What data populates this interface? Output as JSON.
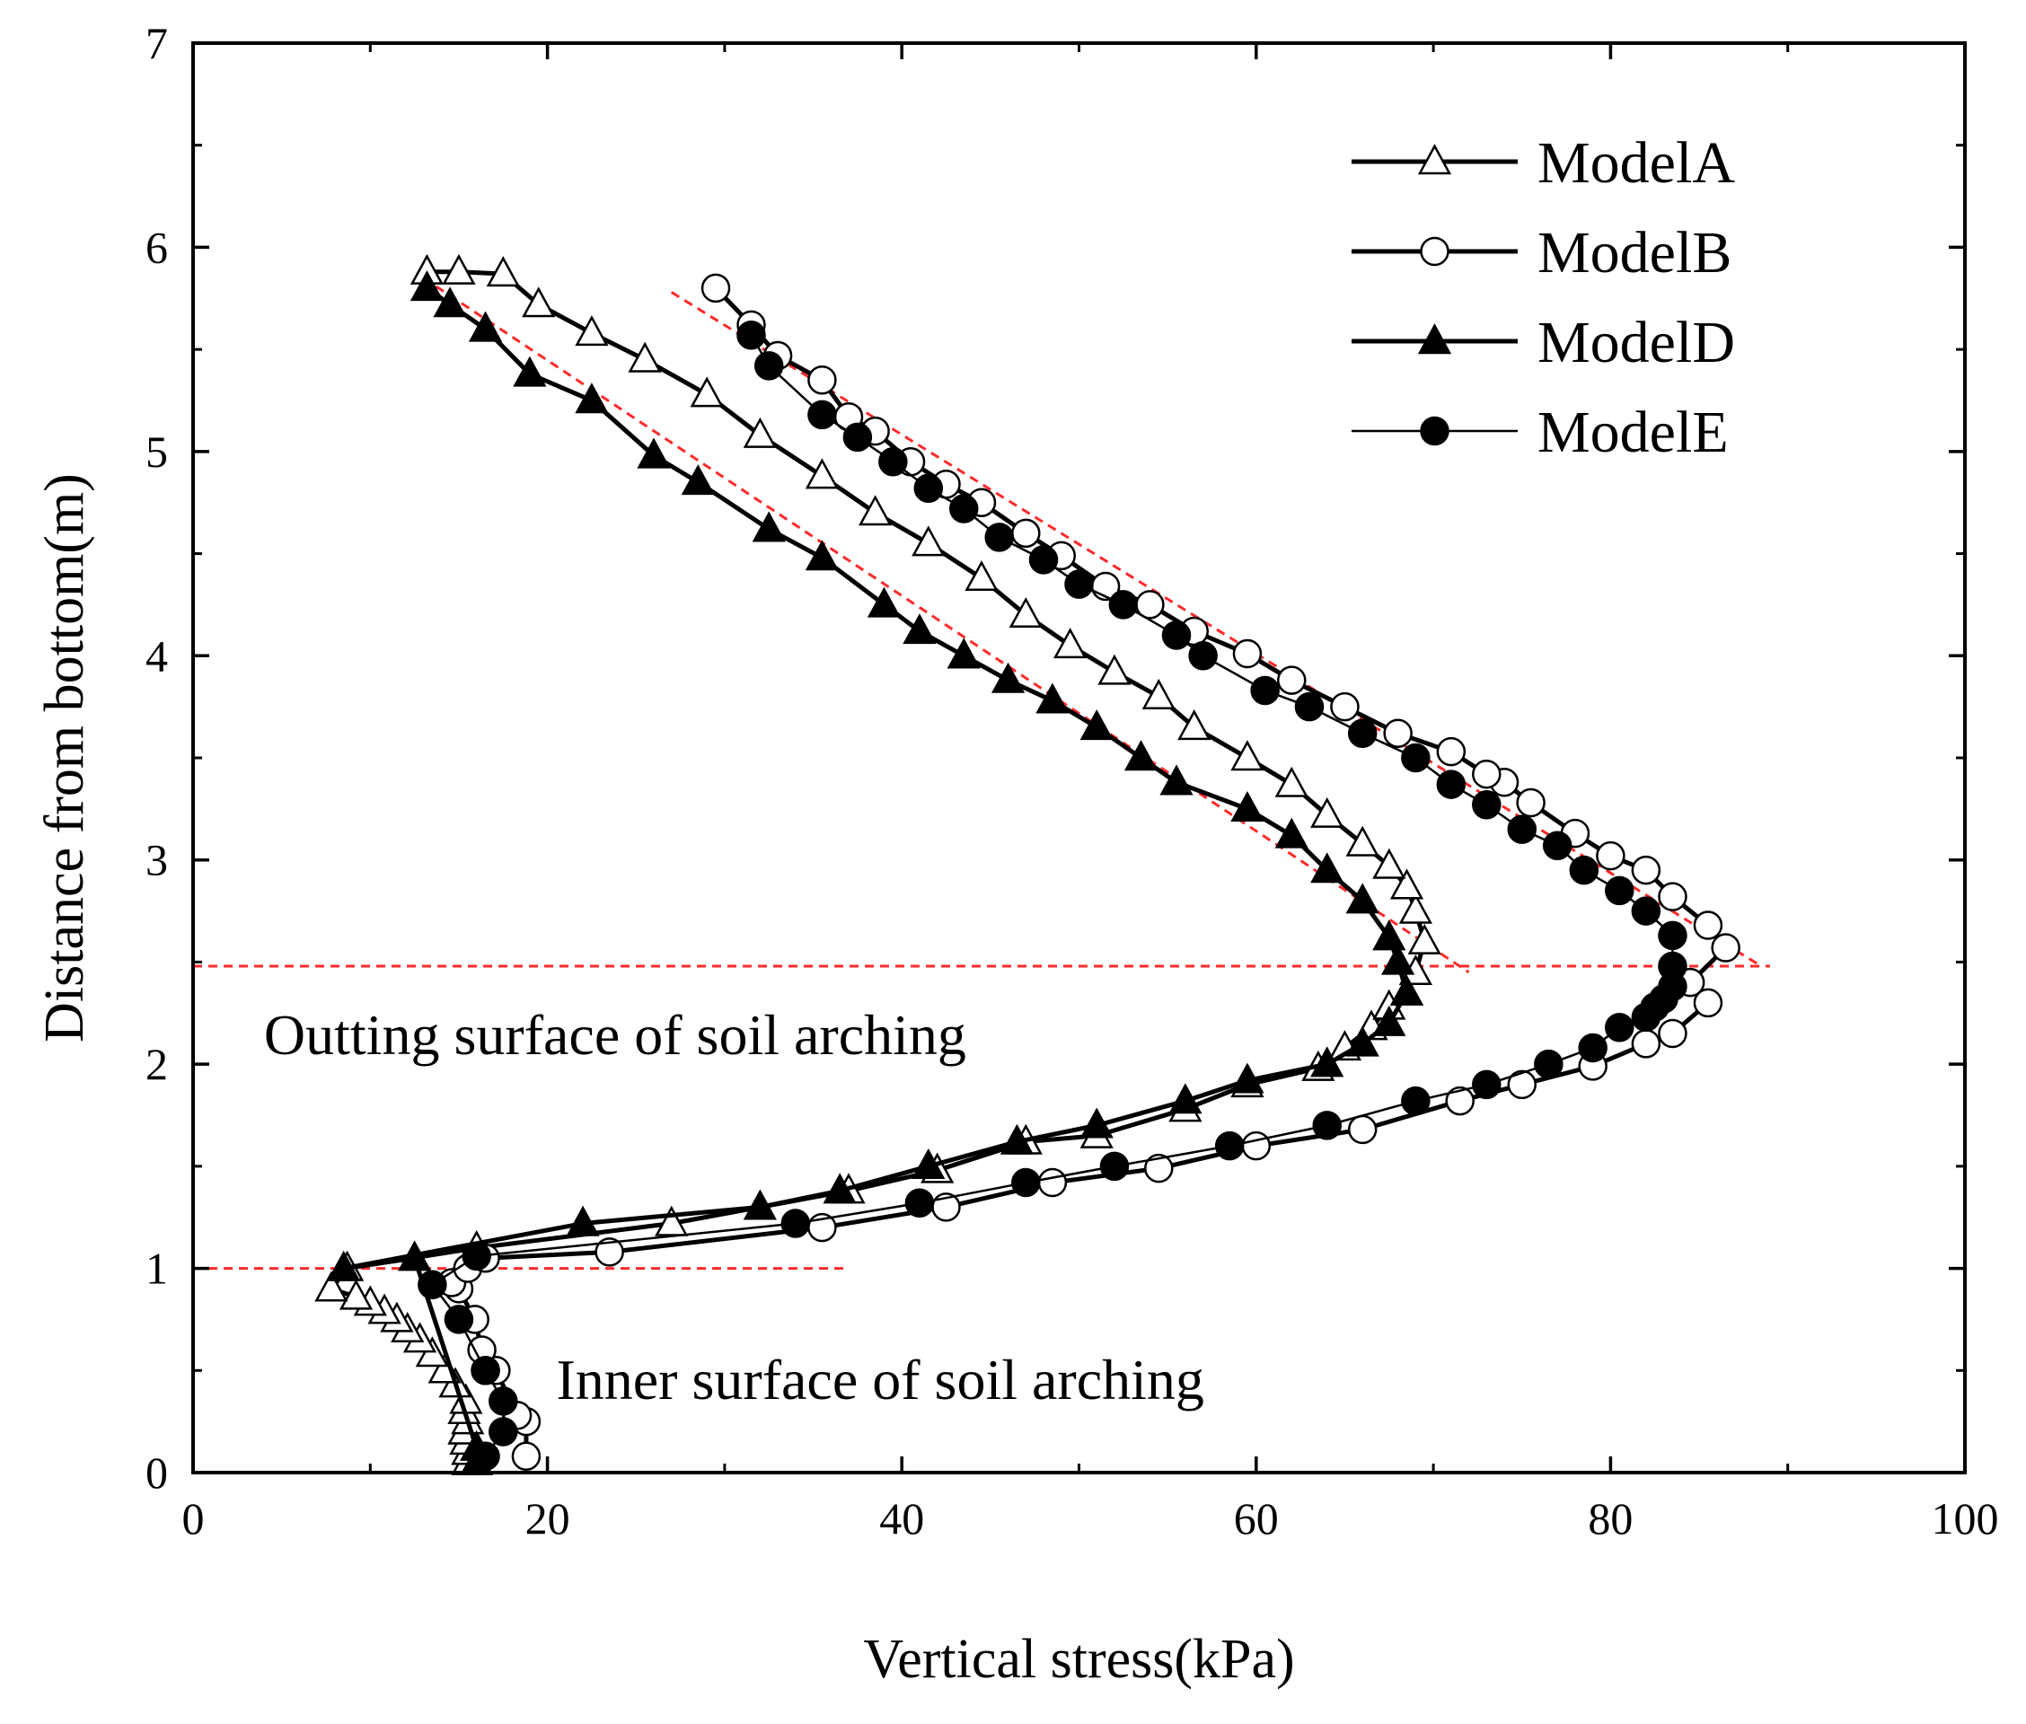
{
  "chart_data": {
    "type": "line",
    "title": "",
    "xlabel": "Vertical stress(kPa)",
    "ylabel": "Distance from bottom(m)",
    "xlim": [
      0,
      100
    ],
    "ylim": [
      0,
      7
    ],
    "xticks": [
      "0",
      "20",
      "40",
      "60",
      "80",
      "100"
    ],
    "yticks": [
      "0",
      "1",
      "2",
      "3",
      "4",
      "5",
      "6",
      "7"
    ],
    "grid": false,
    "legend_position": "top-right",
    "series": [
      {
        "name": "ModelA",
        "marker": "open-triangle",
        "line": "thick",
        "x": [
          15.5,
          15.5,
          15.4,
          15.3,
          15.5,
          15.3,
          15.4,
          14.8,
          14.2,
          13.5,
          12.8,
          12.1,
          11.5,
          10.8,
          10.0,
          9.2,
          7.8,
          8.7,
          16.0,
          27.0,
          37.0,
          42.0,
          47.0,
          51.0,
          56.0,
          59.5,
          63.5,
          65.0,
          66.5,
          67.5,
          68.5,
          69.0,
          69.5,
          69.0,
          68.5,
          67.5,
          66.0,
          64.0,
          62.0,
          59.5,
          56.5,
          54.5,
          52.0,
          49.5,
          47.0,
          44.5,
          41.5,
          38.5,
          35.5,
          32.0,
          29.0,
          25.5,
          22.5,
          19.5,
          17.5,
          15.0,
          13.2
        ],
        "y": [
          0.05,
          0.1,
          0.15,
          0.2,
          0.25,
          0.3,
          0.35,
          0.43,
          0.5,
          0.58,
          0.65,
          0.7,
          0.75,
          0.79,
          0.83,
          0.86,
          0.9,
          1.0,
          1.1,
          1.22,
          1.38,
          1.48,
          1.62,
          1.65,
          1.78,
          1.9,
          1.98,
          2.08,
          2.18,
          2.28,
          2.35,
          2.45,
          2.6,
          2.75,
          2.87,
          2.97,
          3.08,
          3.22,
          3.37,
          3.5,
          3.65,
          3.8,
          3.92,
          4.05,
          4.2,
          4.38,
          4.55,
          4.7,
          4.88,
          5.08,
          5.28,
          5.45,
          5.58,
          5.72,
          5.87,
          5.88,
          5.88
        ]
      },
      {
        "name": "ModelB",
        "marker": "open-circle",
        "line": "thick",
        "x": [
          18.8,
          18.8,
          18.3,
          17.1,
          16.5,
          16.3,
          15.9,
          15.0,
          14.6,
          15.5,
          16.5,
          23.5,
          35.5,
          42.5,
          48.5,
          54.5,
          60.0,
          66.0,
          71.5,
          75.0,
          79.0,
          82.0,
          83.5,
          85.5,
          84.5,
          86.5,
          85.5,
          83.5,
          82.0,
          80.0,
          78.0,
          75.5,
          74.0,
          73.0,
          71.0,
          68.0,
          65.0,
          62.0,
          59.5,
          56.5,
          54.0,
          51.5,
          49.0,
          47.0,
          44.5,
          42.5,
          40.5,
          38.5,
          37.0,
          35.5,
          33.0,
          31.5,
          29.5
        ],
        "y": [
          0.08,
          0.25,
          0.28,
          0.5,
          0.5,
          0.6,
          0.75,
          0.9,
          0.93,
          1.0,
          1.05,
          1.08,
          1.2,
          1.3,
          1.42,
          1.49,
          1.6,
          1.68,
          1.82,
          1.9,
          1.99,
          2.1,
          2.15,
          2.3,
          2.4,
          2.57,
          2.68,
          2.82,
          2.95,
          3.02,
          3.13,
          3.28,
          3.38,
          3.42,
          3.53,
          3.62,
          3.75,
          3.88,
          4.01,
          4.12,
          4.25,
          4.34,
          4.49,
          4.6,
          4.75,
          4.84,
          4.95,
          5.1,
          5.17,
          5.35,
          5.47,
          5.62,
          5.8
        ]
      },
      {
        "name": "ModelD",
        "marker": "filled-triangle",
        "line": "thick",
        "x": [
          16.0,
          16.0,
          12.5,
          8.5,
          22.0,
          32.0,
          36.5,
          41.5,
          46.5,
          51.0,
          56.0,
          59.5,
          64.0,
          66.0,
          67.5,
          68.5,
          68.0,
          67.5,
          66.0,
          64.0,
          62.0,
          59.5,
          55.5,
          53.5,
          51.0,
          48.5,
          46.0,
          43.5,
          41.0,
          39.0,
          35.5,
          32.5,
          28.5,
          26.0,
          22.5,
          19.0,
          16.5,
          14.5,
          13.2
        ],
        "y": [
          0.05,
          0.12,
          1.05,
          1.0,
          1.22,
          1.3,
          1.38,
          1.5,
          1.62,
          1.7,
          1.82,
          1.92,
          2.0,
          2.1,
          2.2,
          2.35,
          2.5,
          2.62,
          2.8,
          2.95,
          3.12,
          3.25,
          3.38,
          3.5,
          3.65,
          3.78,
          3.88,
          4.0,
          4.12,
          4.25,
          4.48,
          4.62,
          4.85,
          4.98,
          5.25,
          5.38,
          5.6,
          5.72,
          5.8
        ]
      },
      {
        "name": "ModelE",
        "marker": "filled-circle",
        "line": "thin",
        "x": [
          16.5,
          17.5,
          17.5,
          16.5,
          15.0,
          13.5,
          16.0,
          34.0,
          41.0,
          47.0,
          52.0,
          58.5,
          64.0,
          69.0,
          73.0,
          76.5,
          79.0,
          80.5,
          82.0,
          82.5,
          83.0,
          83.5,
          83.5,
          83.5,
          82.0,
          80.5,
          78.5,
          77.0,
          75.0,
          73.0,
          71.0,
          69.0,
          66.0,
          63.0,
          60.5,
          57.0,
          55.5,
          52.5,
          50.0,
          48.0,
          45.5,
          43.5,
          41.5,
          39.5,
          37.5,
          35.5,
          32.5,
          31.5
        ],
        "y": [
          0.08,
          0.2,
          0.35,
          0.5,
          0.75,
          0.92,
          1.06,
          1.22,
          1.32,
          1.42,
          1.5,
          1.6,
          1.7,
          1.82,
          1.9,
          2.0,
          2.08,
          2.18,
          2.23,
          2.28,
          2.32,
          2.38,
          2.48,
          2.63,
          2.75,
          2.85,
          2.95,
          3.07,
          3.15,
          3.27,
          3.37,
          3.5,
          3.62,
          3.75,
          3.83,
          4.0,
          4.1,
          4.25,
          4.35,
          4.47,
          4.58,
          4.72,
          4.82,
          4.95,
          5.07,
          5.18,
          5.42,
          5.57
        ]
      }
    ],
    "reference_lines": [
      {
        "kind": "horizontal",
        "y": 2.48,
        "x_from": 0,
        "x_to": 89
      },
      {
        "kind": "horizontal",
        "y": 1.0,
        "x_from": 0,
        "x_to": 37
      },
      {
        "kind": "trend",
        "from": [
          13.0,
          5.85
        ],
        "to": [
          72.0,
          2.45
        ]
      },
      {
        "kind": "trend",
        "from": [
          27.0,
          5.78
        ],
        "to": [
          88.5,
          2.48
        ]
      }
    ],
    "annotations": [
      {
        "text": "Outting surface of soil arching",
        "x": 4,
        "y": 2.05
      },
      {
        "text": "Inner surface of soil arching",
        "x": 20.5,
        "y": 0.36
      }
    ]
  }
}
